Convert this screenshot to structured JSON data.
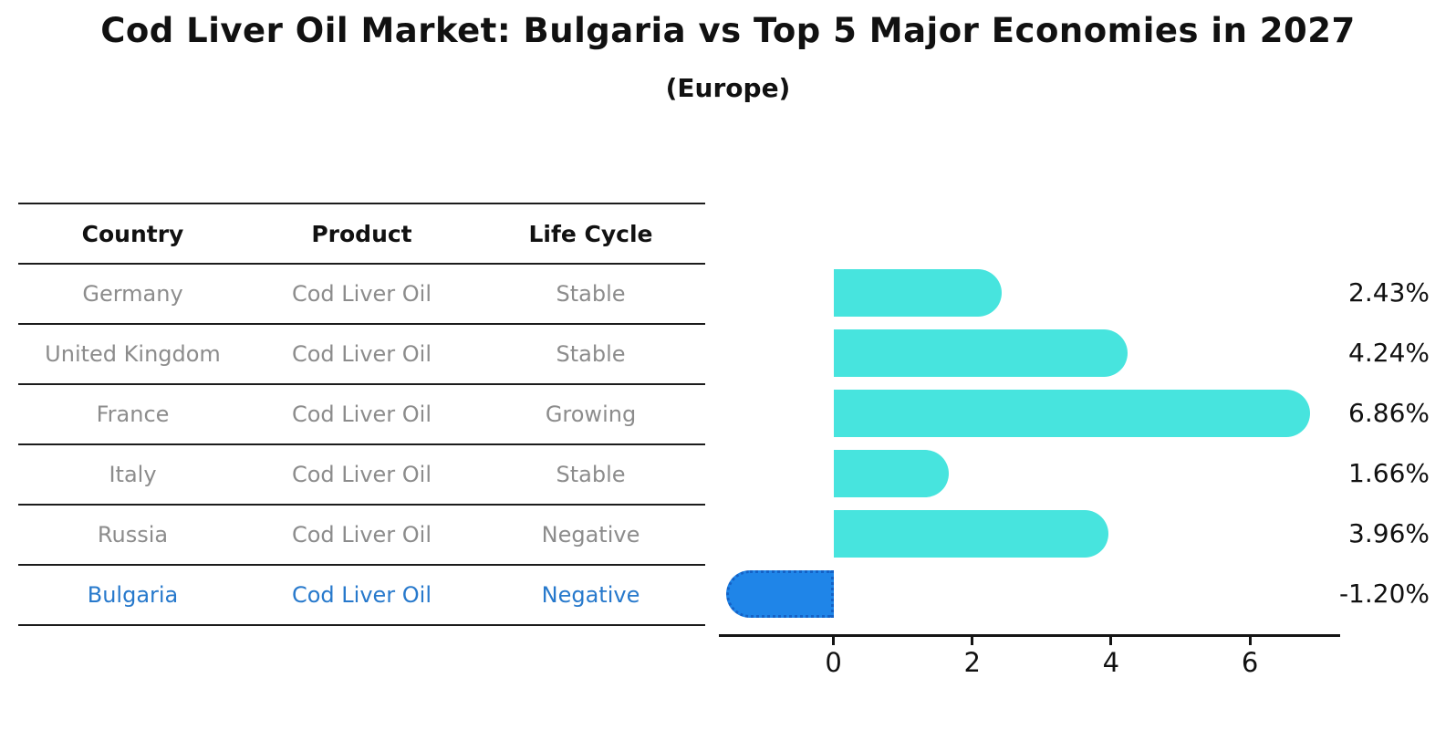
{
  "page": {
    "title": "Cod Liver Oil Market: Bulgaria vs Top 5 Major Economies in 2027",
    "subtitle": "(Europe)"
  },
  "table": {
    "headers": [
      "Country",
      "Product",
      "Life Cycle"
    ],
    "rows": [
      {
        "country": "Germany",
        "product": "Cod Liver Oil",
        "life_cycle": "Stable",
        "highlight": false
      },
      {
        "country": "United Kingdom",
        "product": "Cod Liver Oil",
        "life_cycle": "Stable",
        "highlight": false
      },
      {
        "country": "France",
        "product": "Cod Liver Oil",
        "life_cycle": "Growing",
        "highlight": false
      },
      {
        "country": "Italy",
        "product": "Cod Liver Oil",
        "life_cycle": "Stable",
        "highlight": false
      },
      {
        "country": "Russia",
        "product": "Cod Liver Oil",
        "life_cycle": "Negative",
        "highlight": false
      },
      {
        "country": "Bulgaria",
        "product": "Cod Liver Oil",
        "life_cycle": "Negative",
        "highlight": true
      }
    ]
  },
  "chart_data": {
    "type": "bar",
    "orientation": "horizontal",
    "title": "Cod Liver Oil Market: Bulgaria vs Top 5 Major Economies in 2027 (Europe)",
    "categories": [
      "Germany",
      "United Kingdom",
      "France",
      "Italy",
      "Russia",
      "Bulgaria"
    ],
    "values": [
      2.43,
      4.24,
      6.86,
      1.66,
      3.96,
      -1.2
    ],
    "value_labels": [
      "2.43%",
      "4.24%",
      "6.86%",
      "1.66%",
      "3.96%",
      "-1.20%"
    ],
    "xticks": [
      "0",
      "2",
      "4",
      "6"
    ],
    "xtick_values": [
      0,
      2,
      4,
      6
    ],
    "xlim": [
      -1.65,
      7.3
    ],
    "grid": false,
    "legend": false,
    "colors": {
      "positive_bar": "#47e4de",
      "negative_bar": "#1f85e8",
      "negative_bar_border": "#1462c6",
      "highlight_text": "#2779cc",
      "row_text": "#8c8c8c",
      "header_text": "#111111",
      "axis": "#141414"
    }
  }
}
